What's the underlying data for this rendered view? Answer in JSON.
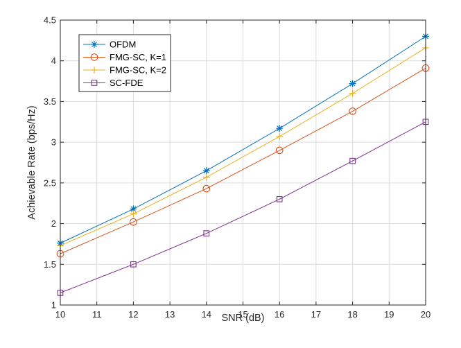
{
  "chart_data": {
    "type": "line",
    "title": "",
    "xlabel": "SNR (dB)",
    "ylabel": "Achievable Rate (bps/Hz)",
    "xlim": [
      10,
      20
    ],
    "ylim": [
      1,
      4.5
    ],
    "xticks": [
      "10",
      "11",
      "12",
      "13",
      "14",
      "15",
      "16",
      "17",
      "18",
      "19",
      "20"
    ],
    "yticks": [
      "1",
      "1.5",
      "2",
      "2.5",
      "3",
      "3.5",
      "4",
      "4.5"
    ],
    "grid": true,
    "legend_position": "top-left",
    "x": [
      10,
      12,
      14,
      16,
      18,
      20
    ],
    "series": [
      {
        "name": "OFDM",
        "marker": "asterisk",
        "color": "#0072BD",
        "values": [
          1.76,
          2.18,
          2.65,
          3.17,
          3.72,
          4.3
        ]
      },
      {
        "name": "FMG-SC, K=1",
        "marker": "circle",
        "color": "#D95319",
        "values": [
          1.63,
          2.02,
          2.43,
          2.9,
          3.38,
          3.91
        ]
      },
      {
        "name": "FMG-SC, K=2",
        "marker": "plus",
        "color": "#EDB120",
        "values": [
          1.73,
          2.12,
          2.57,
          3.07,
          3.6,
          4.16
        ]
      },
      {
        "name": "SC-FDE",
        "marker": "square",
        "color": "#7E2F8E",
        "values": [
          1.15,
          1.5,
          1.88,
          2.3,
          2.77,
          3.25
        ]
      }
    ]
  }
}
